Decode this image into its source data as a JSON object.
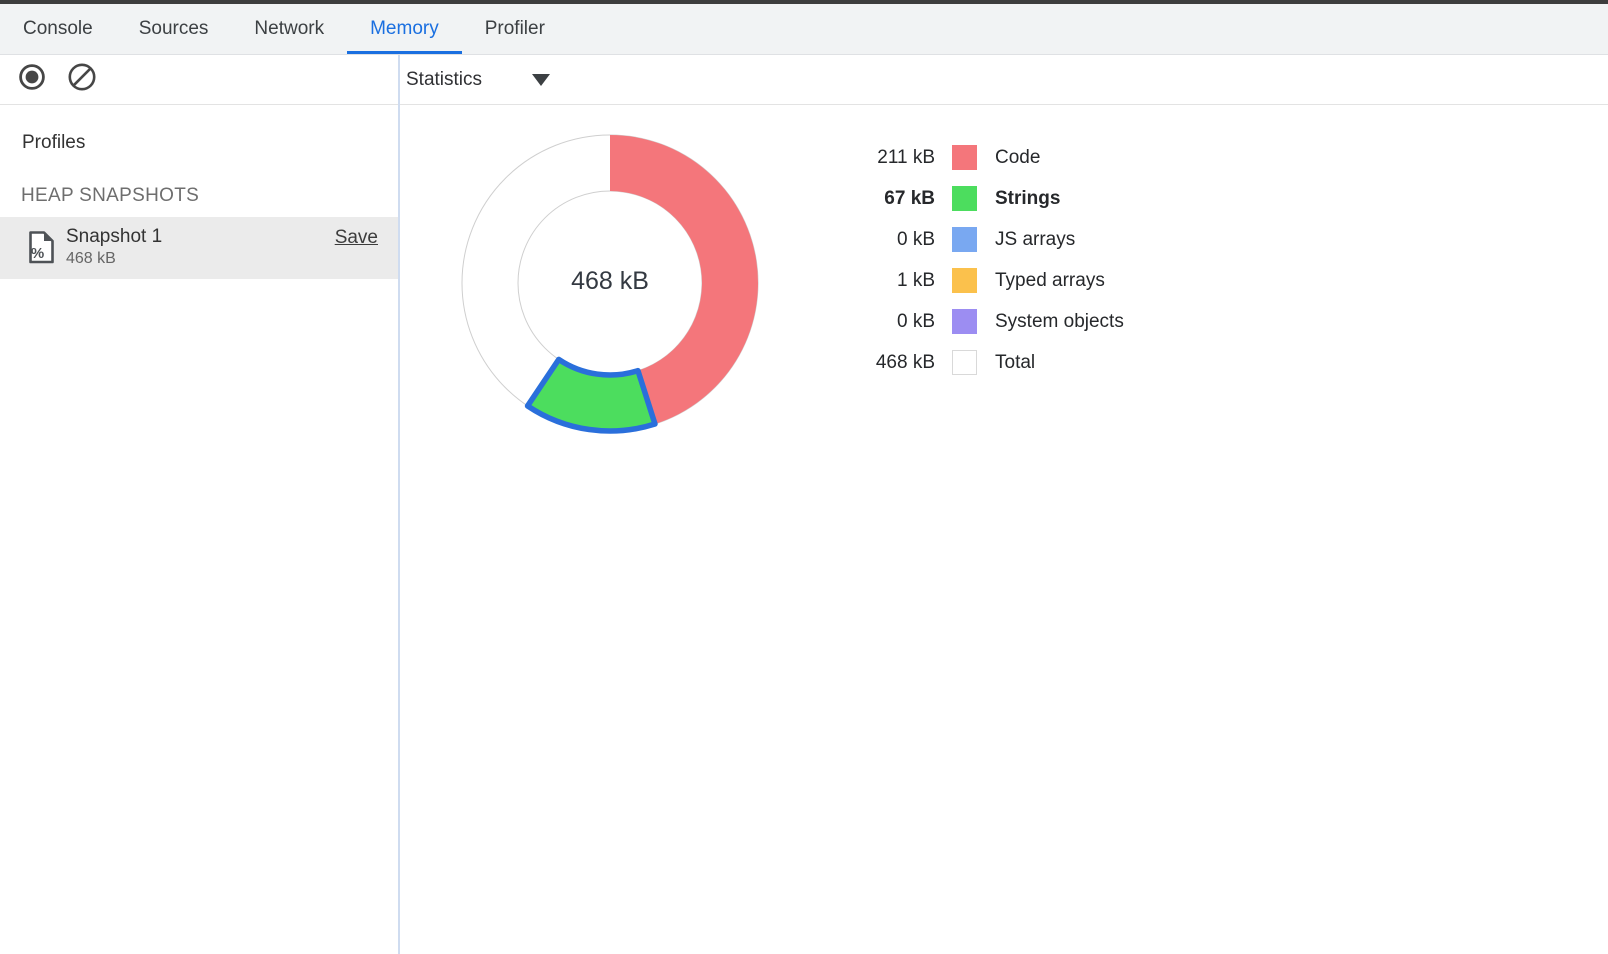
{
  "tabs": {
    "active": "Memory",
    "items": [
      {
        "label": "Console"
      },
      {
        "label": "Sources"
      },
      {
        "label": "Network"
      },
      {
        "label": "Memory"
      },
      {
        "label": "Profiler"
      }
    ]
  },
  "toolbar": {
    "icons": [
      {
        "name": "record-icon"
      },
      {
        "name": "clear-icon"
      }
    ],
    "view_selected": "Statistics",
    "dropdown_icon": "chevron-down-icon"
  },
  "sidebar": {
    "title": "Profiles",
    "section_heading": "HEAP SNAPSHOTS",
    "snapshots": [
      {
        "name": "Snapshot 1",
        "size": "468 kB",
        "action_label": "Save",
        "selected": true,
        "icon": "heap-snapshot-icon"
      }
    ]
  },
  "colors": {
    "accent_blue": "#1a6fe0",
    "highlight_stroke": "#2a6fdb",
    "divider": "#cfdcf0",
    "selected_row_bg": "#ebebeb",
    "ring_outline": "#cfcfcf"
  },
  "chart_data": {
    "type": "pie",
    "subtype": "donut",
    "units": "kB",
    "total_kb": 468,
    "center_label": "468 kB",
    "legend_position": "right",
    "start_angle_deg": 0,
    "direction": "clockwise",
    "slices": [
      {
        "label": "Code",
        "value_kb": 211,
        "display": "211 kB",
        "color": "#f4767b",
        "bold": false,
        "highlighted": false
      },
      {
        "label": "Strings",
        "value_kb": 67,
        "display": "67 kB",
        "color": "#4cdd5e",
        "bold": true,
        "highlighted": true
      },
      {
        "label": "JS arrays",
        "value_kb": 0,
        "display": "0 kB",
        "color": "#79a8f1",
        "bold": false,
        "highlighted": false
      },
      {
        "label": "Typed arrays",
        "value_kb": 1,
        "display": "1 kB",
        "color": "#fbc14c",
        "bold": false,
        "highlighted": false
      },
      {
        "label": "System objects",
        "value_kb": 0,
        "display": "0 kB",
        "color": "#9c8df2",
        "bold": false,
        "highlighted": false
      }
    ],
    "total_row": {
      "label": "Total",
      "display": "468 kB",
      "color": "#ffffff",
      "border_color": "#d9d9d9"
    }
  }
}
